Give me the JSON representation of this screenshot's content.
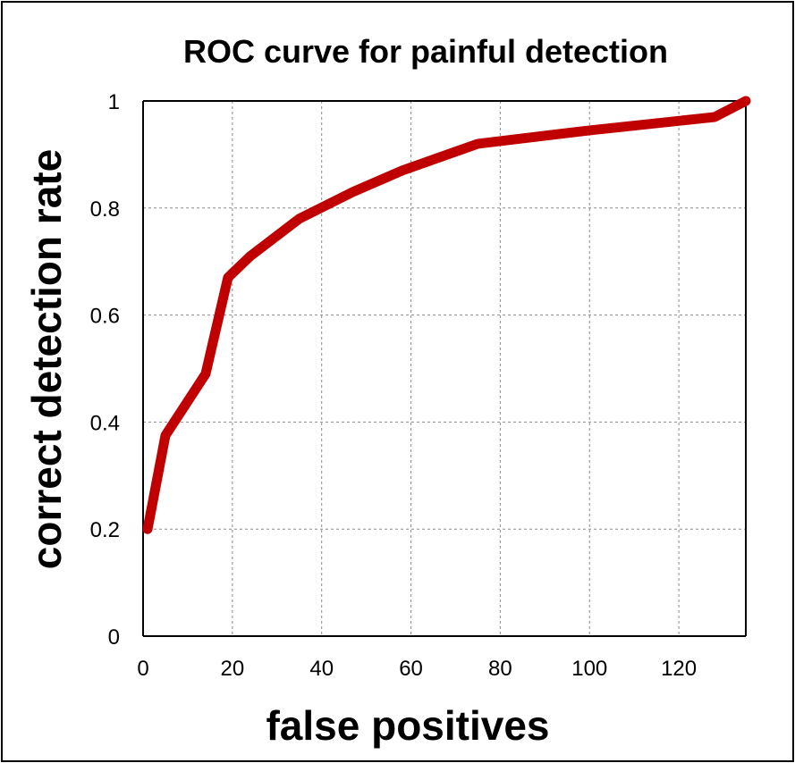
{
  "chart_data": {
    "type": "line",
    "title": "ROC curve  for  painful  detection",
    "xlabel": "false positives",
    "ylabel": "correct  detection  rate",
    "xlim": [
      0,
      135
    ],
    "ylim": [
      0,
      1
    ],
    "x_ticks": [
      0,
      20,
      40,
      60,
      80,
      100,
      120
    ],
    "y_ticks": [
      0,
      0.2,
      0.4,
      0.6,
      0.8,
      1
    ],
    "x_tick_labels": [
      "0",
      "20",
      "40",
      "60",
      "80",
      "100",
      "120"
    ],
    "y_tick_labels": [
      "0",
      "0.2",
      "0.4",
      "0.6",
      "0.8",
      "1"
    ],
    "grid": true,
    "series": [
      {
        "color": "#c00000",
        "x": [
          1,
          5,
          14,
          19,
          24,
          35,
          47,
          58,
          75,
          100,
          128,
          135
        ],
        "y": [
          0.2,
          0.375,
          0.49,
          0.67,
          0.71,
          0.78,
          0.83,
          0.87,
          0.92,
          0.945,
          0.97,
          1.0
        ]
      }
    ]
  }
}
